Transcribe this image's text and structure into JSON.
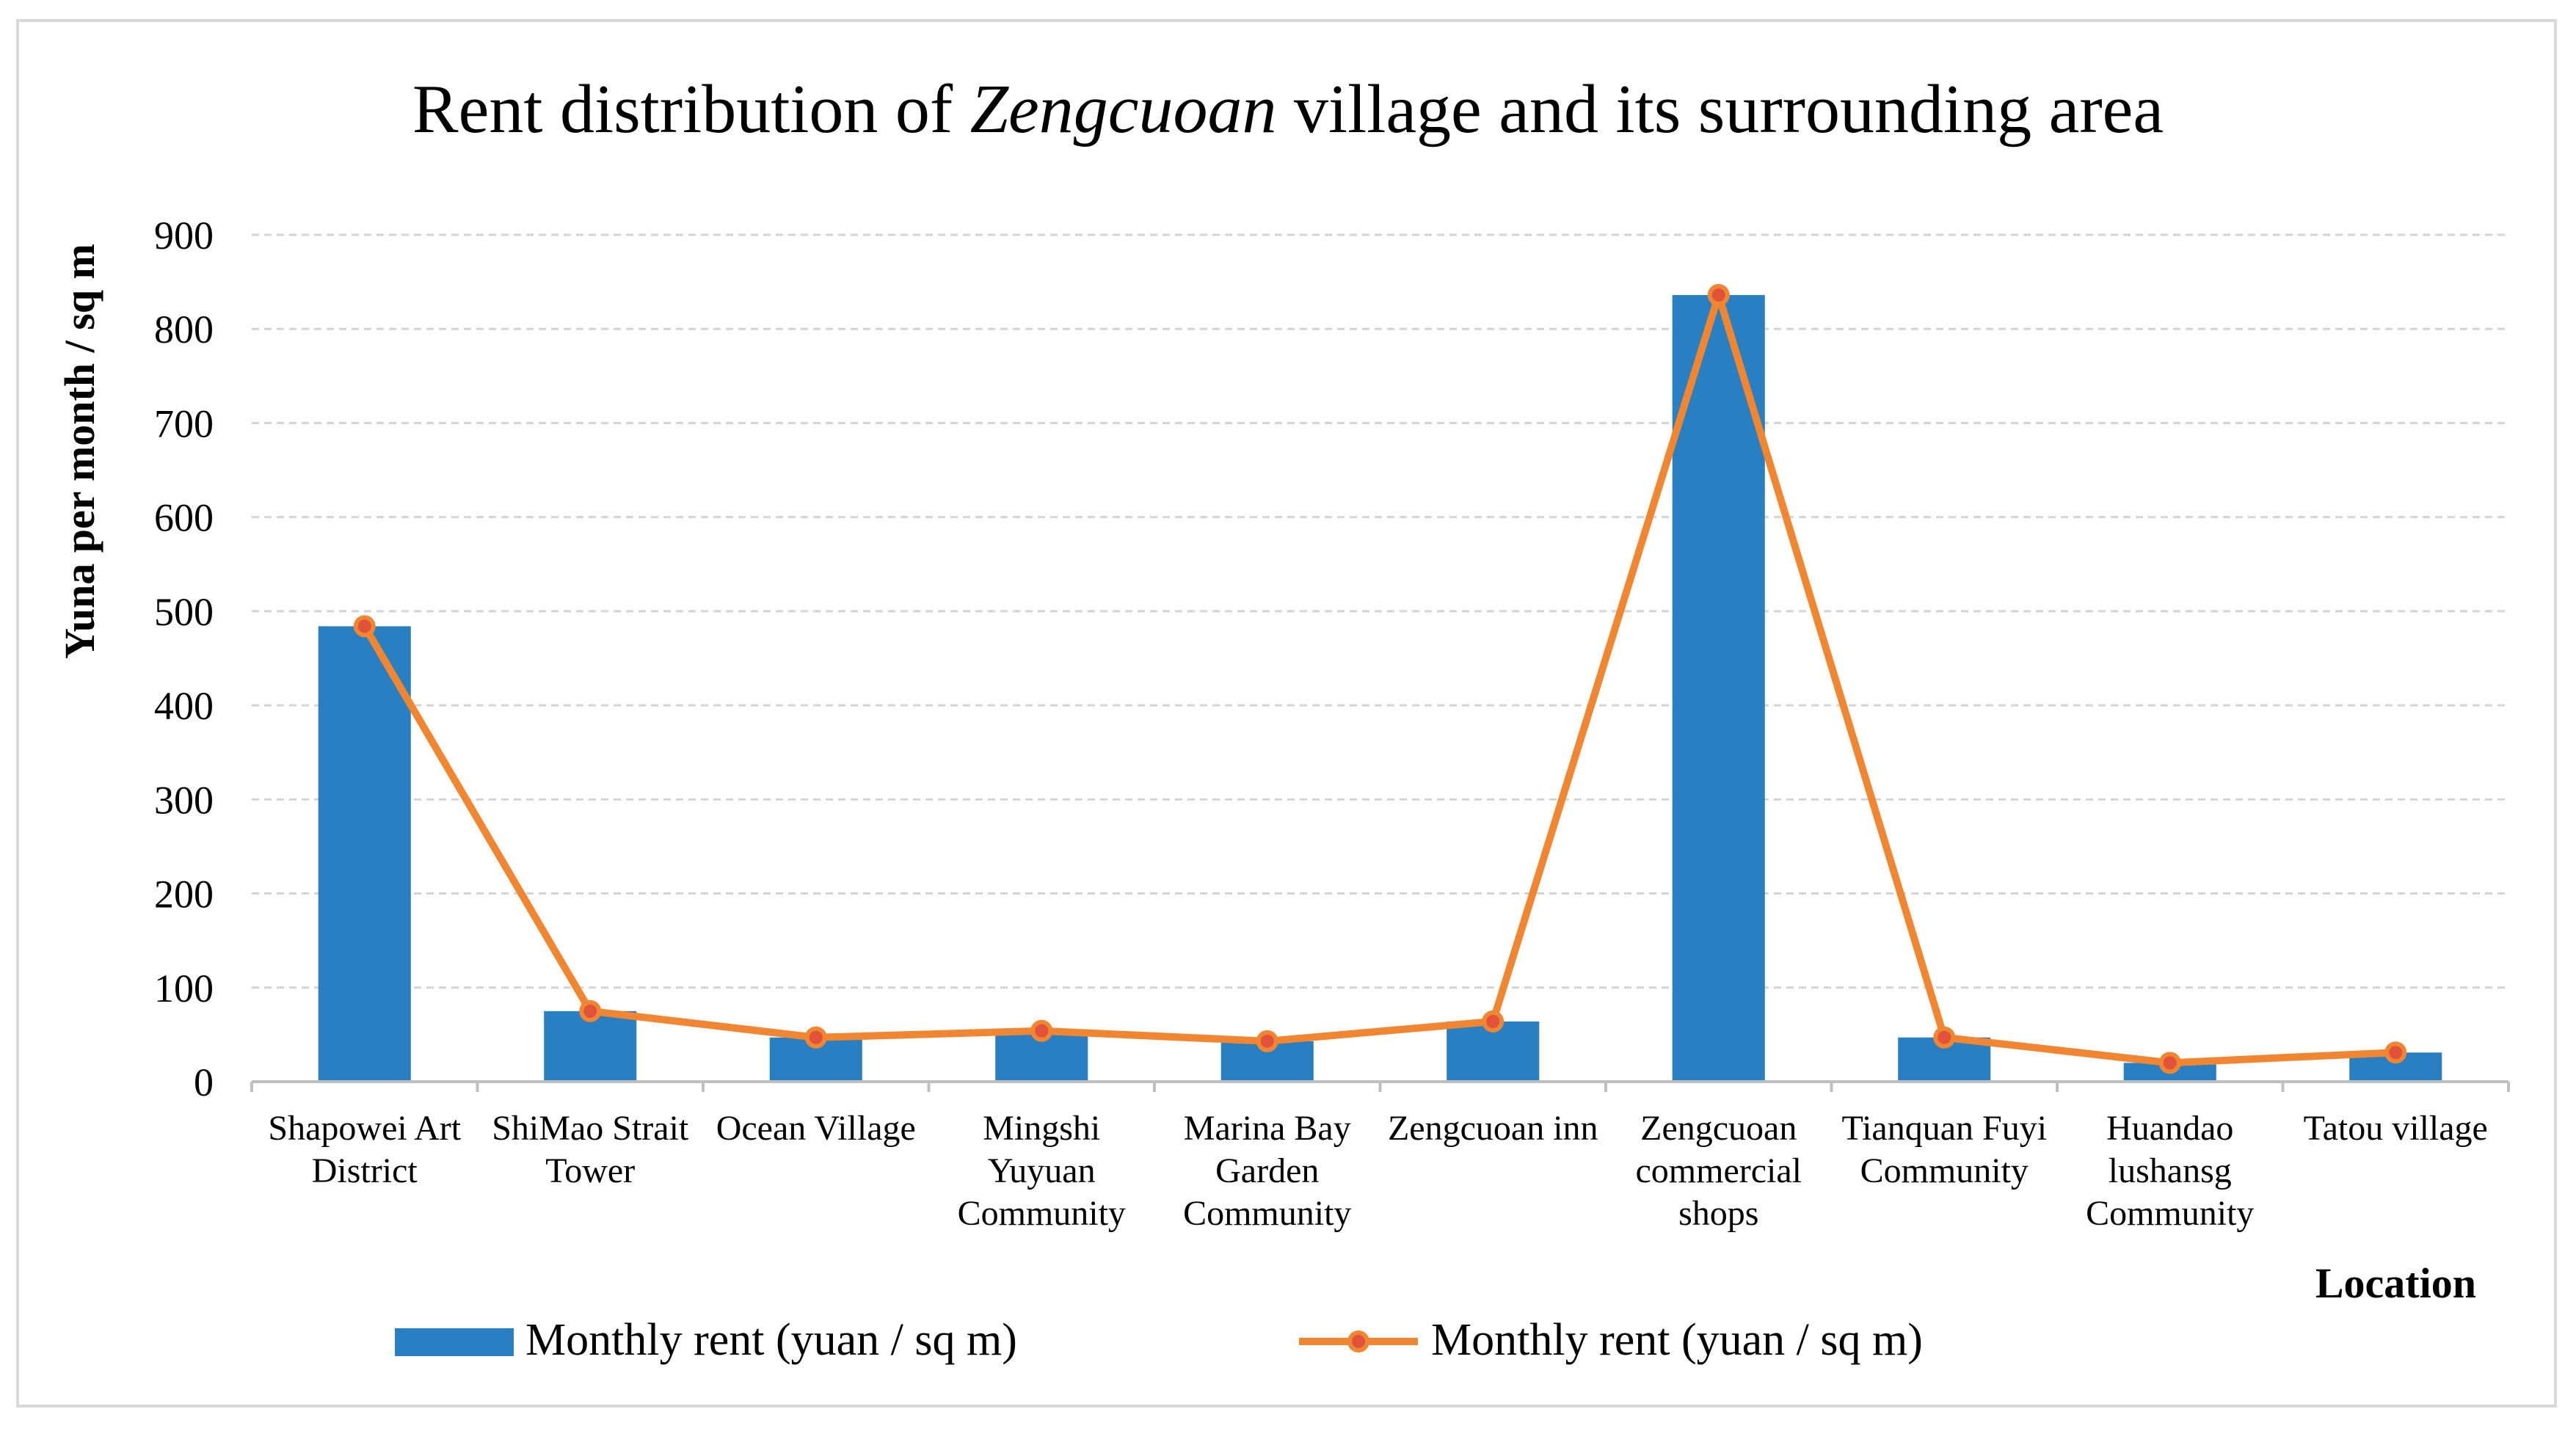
{
  "chart_data": {
    "type": "bar",
    "title_parts": [
      {
        "text": "Rent distribution of ",
        "italic": false
      },
      {
        "text": "Zengcuoan",
        "italic": true
      },
      {
        "text": " village and its surrounding area",
        "italic": false
      }
    ],
    "xlabel": "Location",
    "ylabel": "Yuna per month / sq m",
    "ylim": [
      0,
      900
    ],
    "yticks": [
      0,
      100,
      200,
      300,
      400,
      500,
      600,
      700,
      800,
      900
    ],
    "grid": true,
    "categories": [
      [
        "Shapowei Art",
        "District"
      ],
      [
        "ShiMao Strait",
        "Tower"
      ],
      [
        "Ocean Village"
      ],
      [
        "Mingshi",
        "Yuyuan",
        "Community"
      ],
      [
        "Marina Bay",
        "Garden",
        "Community"
      ],
      [
        "Zengcuoan inn"
      ],
      [
        "Zengcuoan",
        "commercial",
        "shops"
      ],
      [
        "Tianquan Fuyi",
        "Community"
      ],
      [
        "Huandao",
        "lushansg",
        "Community"
      ],
      [
        "Tatou village"
      ]
    ],
    "series": [
      {
        "name": "Monthly rent (yuan / sq m)",
        "kind": "bar",
        "color": "#2880c3",
        "values": [
          484,
          75,
          47,
          54,
          43,
          64,
          836,
          47,
          20,
          31
        ]
      },
      {
        "name": "Monthly rent (yuan / sq m)",
        "kind": "line",
        "color": "#f28530",
        "marker_color": "#e0523a",
        "values": [
          484,
          75,
          47,
          54,
          43,
          64,
          836,
          47,
          20,
          31
        ]
      }
    ],
    "legend_position": "bottom"
  }
}
